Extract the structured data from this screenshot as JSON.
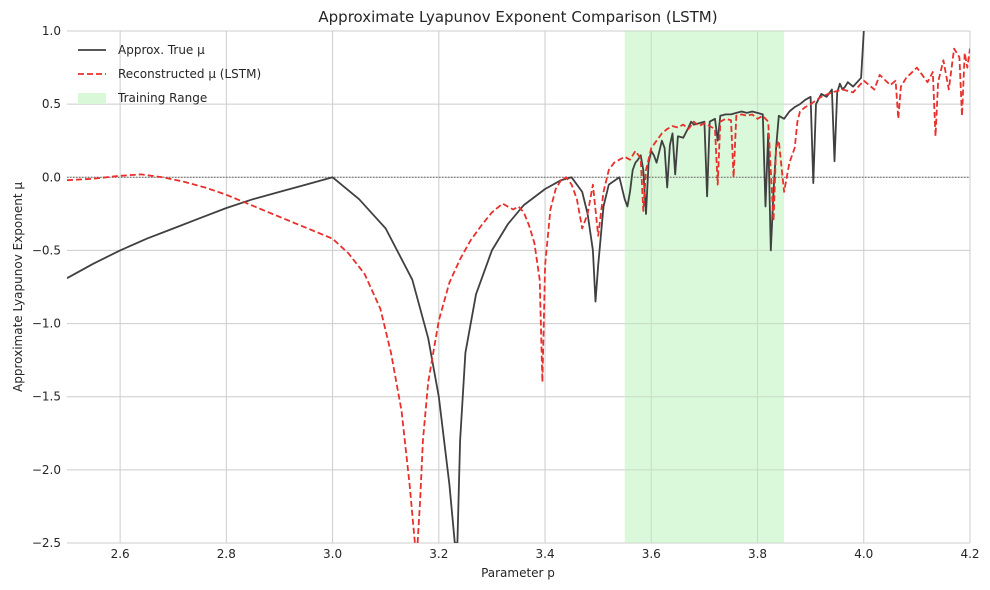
{
  "chart_data": {
    "type": "line",
    "title": "Approximate Lyapunov Exponent Comparison (LSTM)",
    "xlabel": "Parameter p",
    "ylabel": "Approximate Lyapunov Exponent μ",
    "xlim": [
      2.5,
      4.2
    ],
    "ylim": [
      -2.5,
      1.0
    ],
    "xticks": [
      "2.6",
      "2.8",
      "3.0",
      "3.2",
      "3.4",
      "3.6",
      "3.8",
      "4.0",
      "4.2"
    ],
    "xtick_values": [
      2.6,
      2.8,
      3.0,
      3.2,
      3.4,
      3.6,
      3.8,
      4.0,
      4.2
    ],
    "yticks": [
      "−2.5",
      "−2.0",
      "−1.5",
      "−1.0",
      "−0.5",
      "0.0",
      "0.5",
      "1.0"
    ],
    "ytick_values": [
      -2.5,
      -2.0,
      -1.5,
      -1.0,
      -0.5,
      0.0,
      0.5,
      1.0
    ],
    "grid": true,
    "legend_position": "top-left",
    "reference_line": {
      "y": 0.0,
      "style": "dotted",
      "color": "#666666"
    },
    "shaded_region": {
      "name": "Training Range",
      "x": [
        3.55,
        3.85
      ],
      "color": "#d8f8d8"
    },
    "series": [
      {
        "name": "Approx. True μ",
        "color": "#404040",
        "style": "solid",
        "x": [
          2.5,
          2.55,
          2.6,
          2.65,
          2.7,
          2.75,
          2.8,
          2.85,
          2.9,
          2.95,
          3.0,
          3.05,
          3.1,
          3.15,
          3.18,
          3.2,
          3.22,
          3.23,
          3.235,
          3.24,
          3.25,
          3.27,
          3.3,
          3.33,
          3.36,
          3.4,
          3.43,
          3.45,
          3.47,
          3.48,
          3.49,
          3.495,
          3.5,
          3.51,
          3.52,
          3.54,
          3.55,
          3.555,
          3.56,
          3.565,
          3.57,
          3.575,
          3.58,
          3.585,
          3.59,
          3.595,
          3.6,
          3.605,
          3.61,
          3.62,
          3.625,
          3.63,
          3.635,
          3.64,
          3.645,
          3.65,
          3.66,
          3.67,
          3.675,
          3.68,
          3.69,
          3.7,
          3.705,
          3.71,
          3.72,
          3.725,
          3.73,
          3.74,
          3.75,
          3.76,
          3.77,
          3.78,
          3.79,
          3.8,
          3.81,
          3.815,
          3.82,
          3.825,
          3.83,
          3.835,
          3.84,
          3.85,
          3.86,
          3.87,
          3.88,
          3.89,
          3.9,
          3.905,
          3.91,
          3.92,
          3.93,
          3.94,
          3.945,
          3.95,
          3.955,
          3.96,
          3.965,
          3.97,
          3.98,
          3.99,
          3.995,
          4.0
        ],
        "y": [
          -0.69,
          -0.59,
          -0.5,
          -0.42,
          -0.35,
          -0.28,
          -0.21,
          -0.15,
          -0.1,
          -0.05,
          0.0,
          -0.15,
          -0.35,
          -0.7,
          -1.1,
          -1.5,
          -2.1,
          -2.5,
          -2.5,
          -1.8,
          -1.2,
          -0.8,
          -0.5,
          -0.32,
          -0.19,
          -0.08,
          -0.02,
          0.0,
          -0.1,
          -0.25,
          -0.5,
          -0.85,
          -0.6,
          -0.2,
          -0.05,
          0.0,
          -0.15,
          -0.2,
          -0.1,
          0.05,
          0.1,
          0.12,
          0.15,
          0.05,
          -0.25,
          0.1,
          0.18,
          0.15,
          0.1,
          0.25,
          0.2,
          -0.07,
          0.22,
          0.3,
          0.02,
          0.28,
          0.27,
          0.34,
          0.38,
          0.36,
          0.37,
          0.38,
          -0.13,
          0.38,
          0.4,
          0.25,
          0.42,
          0.43,
          0.43,
          0.44,
          0.45,
          0.44,
          0.45,
          0.44,
          0.43,
          -0.2,
          0.3,
          -0.5,
          -0.1,
          0.2,
          0.42,
          0.4,
          0.45,
          0.48,
          0.5,
          0.53,
          0.55,
          -0.04,
          0.5,
          0.57,
          0.55,
          0.6,
          0.11,
          0.58,
          0.64,
          0.6,
          0.62,
          0.65,
          0.62,
          0.66,
          0.68,
          1.0
        ]
      },
      {
        "name": "Reconstructed μ (LSTM)",
        "color": "#e8302c",
        "style": "dashed",
        "x": [
          2.5,
          2.55,
          2.6,
          2.64,
          2.68,
          2.72,
          2.76,
          2.8,
          2.84,
          2.88,
          2.92,
          2.96,
          3.0,
          3.03,
          3.06,
          3.09,
          3.11,
          3.13,
          3.145,
          3.155,
          3.16,
          3.165,
          3.17,
          3.18,
          3.2,
          3.22,
          3.24,
          3.26,
          3.28,
          3.3,
          3.32,
          3.34,
          3.35,
          3.36,
          3.37,
          3.38,
          3.39,
          3.395,
          3.4,
          3.41,
          3.42,
          3.43,
          3.44,
          3.45,
          3.46,
          3.47,
          3.48,
          3.49,
          3.5,
          3.51,
          3.52,
          3.53,
          3.54,
          3.55,
          3.56,
          3.57,
          3.58,
          3.585,
          3.59,
          3.6,
          3.61,
          3.62,
          3.63,
          3.64,
          3.65,
          3.66,
          3.67,
          3.68,
          3.69,
          3.7,
          3.72,
          3.725,
          3.73,
          3.74,
          3.75,
          3.755,
          3.76,
          3.77,
          3.78,
          3.79,
          3.8,
          3.81,
          3.82,
          3.83,
          3.835,
          3.84,
          3.85,
          3.86,
          3.87,
          3.875,
          3.88,
          3.89,
          3.9,
          3.92,
          3.94,
          3.96,
          3.98,
          4.0,
          4.02,
          4.03,
          4.05,
          4.06,
          4.065,
          4.07,
          4.08,
          4.1,
          4.12,
          4.13,
          4.135,
          4.14,
          4.15,
          4.16,
          4.17,
          4.18,
          4.185,
          4.19,
          4.195,
          4.2
        ],
        "y": [
          -0.02,
          -0.01,
          0.01,
          0.02,
          0.0,
          -0.03,
          -0.07,
          -0.12,
          -0.18,
          -0.24,
          -0.3,
          -0.36,
          -0.42,
          -0.52,
          -0.66,
          -0.9,
          -1.2,
          -1.6,
          -2.1,
          -2.5,
          -2.5,
          -2.2,
          -1.8,
          -1.4,
          -0.98,
          -0.72,
          -0.56,
          -0.43,
          -0.33,
          -0.24,
          -0.18,
          -0.22,
          -0.2,
          -0.24,
          -0.33,
          -0.45,
          -0.7,
          -1.4,
          -0.6,
          -0.22,
          -0.08,
          -0.02,
          0.0,
          -0.05,
          -0.15,
          -0.35,
          -0.25,
          -0.05,
          -0.4,
          -0.1,
          0.05,
          0.1,
          0.12,
          0.14,
          0.12,
          0.18,
          0.13,
          -0.23,
          0.05,
          0.2,
          0.25,
          0.3,
          0.33,
          0.35,
          0.34,
          0.36,
          0.33,
          0.38,
          0.35,
          0.37,
          0.33,
          -0.05,
          0.38,
          0.4,
          0.39,
          0.0,
          0.42,
          0.43,
          0.42,
          0.43,
          0.4,
          0.42,
          0.38,
          -0.3,
          0.2,
          0.25,
          -0.1,
          0.1,
          0.2,
          0.38,
          0.45,
          0.48,
          0.5,
          0.55,
          0.58,
          0.6,
          0.58,
          0.66,
          0.6,
          0.7,
          0.63,
          0.66,
          0.4,
          0.62,
          0.68,
          0.75,
          0.65,
          0.72,
          0.28,
          0.65,
          0.8,
          0.6,
          0.88,
          0.82,
          0.42,
          0.85,
          0.75,
          0.88
        ]
      }
    ]
  }
}
